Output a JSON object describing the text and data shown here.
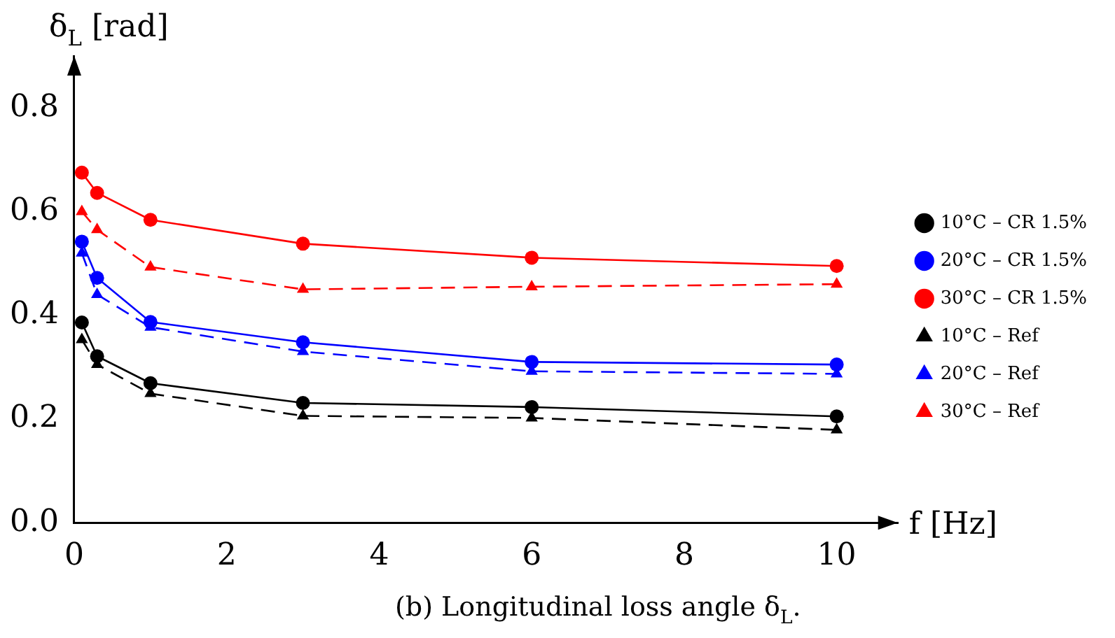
{
  "chart_data": {
    "type": "line",
    "xlabel": "f [Hz]",
    "ylabel": "δ$_{L}$ [rad]",
    "annotations": [
      "(b) Longitudinal loss angle δ$_{L}$."
    ],
    "x": [
      0.1,
      0.3,
      1,
      3,
      6,
      10
    ],
    "xlim": [
      0,
      10.8
    ],
    "xticks": [
      0,
      2,
      4,
      6,
      8,
      10
    ],
    "ylim": [
      0,
      0.9
    ],
    "yticks": [
      {
        "value": 0,
        "label": "0.0"
      },
      0.2,
      0.4,
      0.6,
      0.8
    ],
    "grid": false,
    "legend": "right",
    "series": [
      {
        "name": "10°C – CR 1.5%",
        "color": "#000000",
        "marker": "circle",
        "line_style": "solid",
        "values": [
          0.386,
          0.321,
          0.269,
          0.231,
          0.223,
          0.205
        ]
      },
      {
        "name": "20°C – CR 1.5%",
        "color": "#0000ff",
        "marker": "circle",
        "line_style": "solid",
        "values": [
          0.542,
          0.472,
          0.387,
          0.348,
          0.31,
          0.305
        ]
      },
      {
        "name": "30°C – CR 1.5%",
        "color": "#ff0000",
        "marker": "circle",
        "line_style": "solid",
        "values": [
          0.675,
          0.636,
          0.584,
          0.538,
          0.511,
          0.495
        ]
      },
      {
        "name": "10°C – Ref",
        "color": "#000000",
        "marker": "triangle",
        "line_style": "dashed",
        "values": [
          0.353,
          0.305,
          0.249,
          0.206,
          0.202,
          0.179
        ]
      },
      {
        "name": "20°C – Ref",
        "color": "#0000ff",
        "marker": "triangle",
        "line_style": "dashed",
        "values": [
          0.52,
          0.44,
          0.377,
          0.33,
          0.292,
          0.287
        ]
      },
      {
        "name": "30°C – Ref",
        "color": "#ff0000",
        "marker": "triangle",
        "line_style": "dashed",
        "values": [
          0.6,
          0.565,
          0.493,
          0.45,
          0.455,
          0.46
        ]
      }
    ]
  }
}
